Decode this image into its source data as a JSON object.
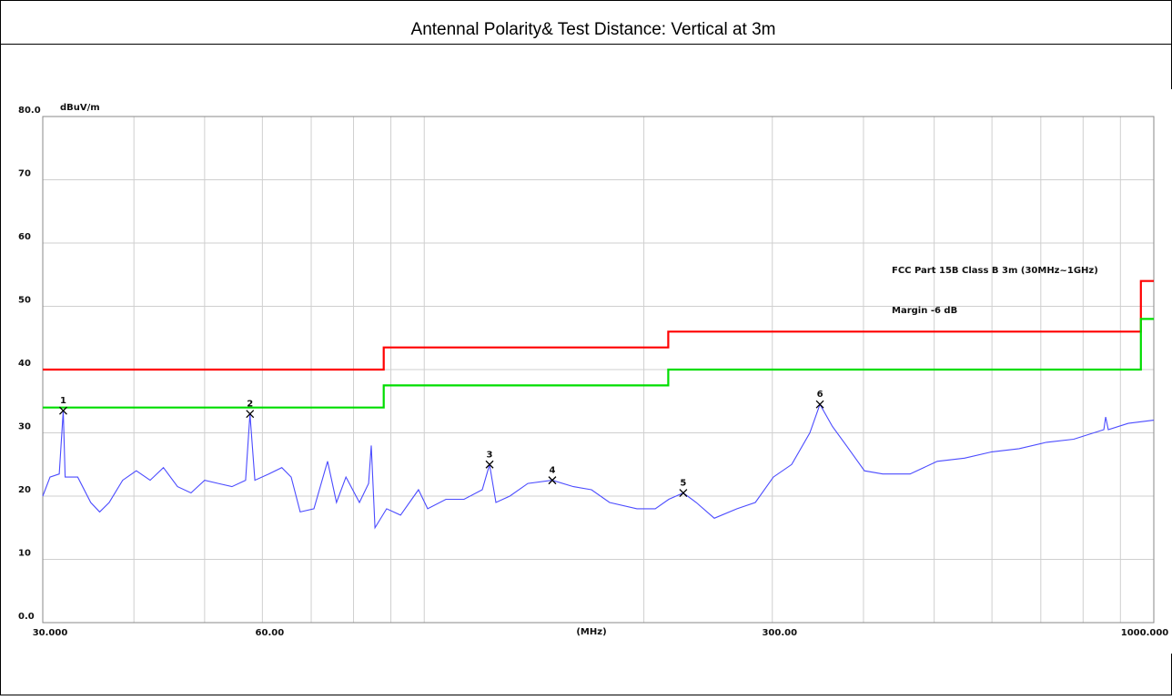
{
  "header": {
    "title": "Antennal Polarity& Test Distance: Vertical at 3m"
  },
  "chart_data": {
    "type": "line",
    "ylabel": "dBuV/m",
    "xlabel": "(MHz)",
    "xscale": "log",
    "xlim": [
      30,
      1000
    ],
    "ylim": [
      0,
      80
    ],
    "xticks": [
      {
        "value": 30,
        "label": "30.000"
      },
      {
        "value": 60,
        "label": "60.00"
      },
      {
        "value": 300,
        "label": "300.00"
      },
      {
        "value": 1000,
        "label": "1000.000"
      }
    ],
    "xgrid": [
      40,
      50,
      70,
      80,
      90,
      100,
      200,
      400,
      500,
      600,
      700,
      800,
      900
    ],
    "yticks": [
      {
        "value": 0,
        "label": "0.0"
      },
      10,
      20,
      30,
      40,
      50,
      60,
      70,
      {
        "value": 80,
        "label": "80.0"
      }
    ],
    "grid": true,
    "series": [
      {
        "color": "#4b4bff",
        "x": [
          30,
          30.7,
          31.6,
          32.0,
          32.2,
          33.5,
          34.9,
          35.9,
          37.0,
          38.6,
          40.3,
          42.1,
          43.9,
          45.9,
          47.9,
          50.0,
          52.2,
          54.5,
          56.9,
          57.7,
          58.6,
          61.2,
          63.8,
          65.7,
          67.6,
          70.6,
          73.7,
          75.8,
          78.1,
          81.5,
          83.9,
          84.6,
          85.6,
          88.8,
          92.8,
          98.2,
          101.1,
          107.1,
          113.4,
          120.1,
          122.9,
          125.4,
          131.0,
          138.7,
          149.8,
          160.1,
          169.5,
          179.5,
          195.7,
          207.3,
          216.4,
          226.5,
          235.9,
          249.8,
          268.4,
          284.3,
          301,
          318.9,
          337.7,
          348.6,
          362.6,
          378.9,
          401.2,
          425,
          463.3,
          504.9,
          550.2,
          599.7,
          653.6,
          712.5,
          776.6,
          854.1,
          859,
          866.3,
          922.6,
          1000
        ],
        "values": [
          20,
          23,
          23.5,
          33.5,
          23,
          23,
          19,
          17.5,
          19,
          22.5,
          24,
          22.5,
          24.5,
          21.5,
          20.5,
          22.5,
          22,
          21.5,
          22.5,
          33,
          22.5,
          23.5,
          24.5,
          23,
          17.5,
          18,
          25.5,
          19,
          23,
          19,
          22,
          28,
          15,
          18,
          17,
          21,
          18,
          19.5,
          19.5,
          21,
          25,
          19,
          20,
          22,
          22.5,
          21.5,
          21,
          19,
          18,
          18,
          19.5,
          20.5,
          19,
          16.5,
          18,
          19,
          23,
          25,
          30,
          34.5,
          31,
          28,
          24,
          23.5,
          23.5,
          25.5,
          26,
          27,
          27.5,
          28.5,
          29,
          30.5,
          32.5,
          30.5,
          31.5,
          32
        ]
      },
      {
        "name": "FCC Part 15B Class B 3m (30MHz~1GHz)",
        "color": "#ff0000",
        "x": [
          30,
          88,
          88,
          216,
          216,
          960,
          960,
          1000
        ],
        "values": [
          40,
          40,
          43.5,
          43.5,
          46,
          46,
          54,
          54
        ]
      },
      {
        "name": "Margin -6 dB",
        "color": "#00dd00",
        "x": [
          30,
          88,
          88,
          216,
          216,
          960,
          960,
          1000
        ],
        "values": [
          34,
          34,
          37.5,
          37.5,
          40,
          40,
          48,
          48
        ]
      }
    ],
    "markers": [
      {
        "label": "1",
        "x": 32.0,
        "y": 33.5
      },
      {
        "label": "2",
        "x": 57.7,
        "y": 33
      },
      {
        "label": "3",
        "x": 122.9,
        "y": 25
      },
      {
        "label": "4",
        "x": 149.8,
        "y": 22.5
      },
      {
        "label": "5",
        "x": 226.5,
        "y": 20.5
      },
      {
        "label": "6",
        "x": 348.6,
        "y": 34.5
      }
    ]
  }
}
